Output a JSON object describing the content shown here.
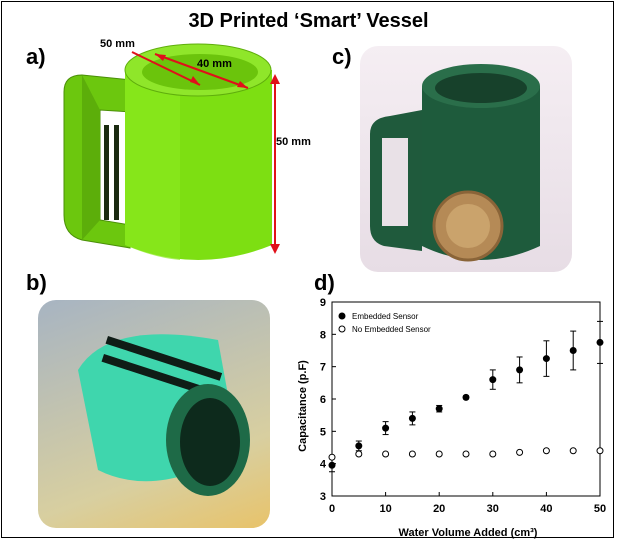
{
  "figure": {
    "title": "3D Printed ‘Smart’ Vessel",
    "panels": {
      "a": "a)",
      "b": "b)",
      "c": "c)",
      "d": "d)"
    },
    "dimensions": {
      "handle_gap": "50 mm",
      "diameter": "40 mm",
      "height": "50 mm"
    },
    "colors": {
      "cad_green": "#7ddf12",
      "printed_green": "#1e5b3c",
      "turquoise": "#3fd6ad",
      "error_bar": "#000000"
    }
  },
  "chart_data": {
    "type": "scatter",
    "title": "",
    "xlabel": "Water Volume Added (cm³)",
    "ylabel": "Capacitance (p.F)",
    "xlim": [
      0,
      50
    ],
    "ylim": [
      3,
      9
    ],
    "x_ticks": [
      "0",
      "10",
      "20",
      "30",
      "40",
      "50"
    ],
    "y_ticks": [
      "3",
      "4",
      "5",
      "6",
      "7",
      "8",
      "9"
    ],
    "legend_position": "top-left",
    "series": [
      {
        "name": "Embedded Sensor",
        "marker": "filled-circle",
        "x": [
          0,
          5,
          10,
          15,
          20,
          25,
          30,
          35,
          40,
          45,
          50
        ],
        "y": [
          3.95,
          4.55,
          5.1,
          5.4,
          5.7,
          6.05,
          6.6,
          6.9,
          7.25,
          7.5,
          7.75
        ],
        "error": [
          0.2,
          0.15,
          0.2,
          0.2,
          0.1,
          0.05,
          0.3,
          0.4,
          0.55,
          0.6,
          0.65
        ]
      },
      {
        "name": "No Embedded Sensor",
        "marker": "open-circle",
        "x": [
          0,
          5,
          10,
          15,
          20,
          25,
          30,
          35,
          40,
          45,
          50
        ],
        "y": [
          4.2,
          4.3,
          4.3,
          4.3,
          4.3,
          4.3,
          4.3,
          4.35,
          4.4,
          4.4,
          4.4
        ]
      }
    ]
  }
}
